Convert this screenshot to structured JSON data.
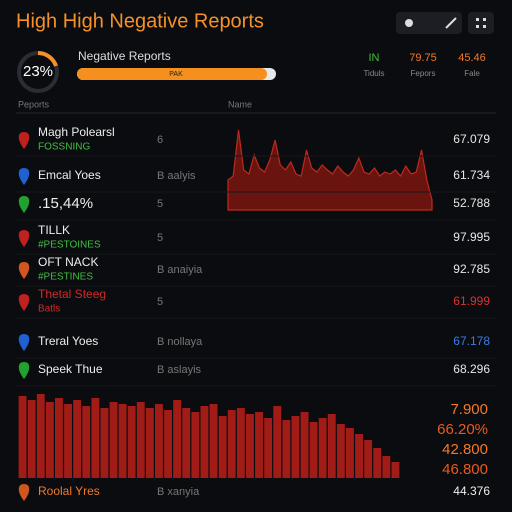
{
  "header": {
    "title": "High High Negative Reports"
  },
  "gauge": {
    "value_label": "23%",
    "caption": "Negative Reports",
    "bar_label": "PAK"
  },
  "stats": [
    {
      "value": "IN",
      "label": "Tiduls",
      "color": "#3fbf3f"
    },
    {
      "value": "79.75",
      "label": "Fepors",
      "color": "#f07a2a"
    },
    {
      "value": "45.46",
      "label": "Fale",
      "color": "#f07a2a"
    }
  ],
  "columns": [
    "Peports",
    "Name"
  ],
  "rows": [
    {
      "name": "Magh Polearsl",
      "sub": "FOSSNING",
      "sub_color": "#3fbf3f",
      "count": "6",
      "value": "67.079",
      "icon": "#c0201e",
      "color": "#e8e8e8"
    },
    {
      "name": "Emcal Yoes",
      "count": "B aalyis",
      "value": "61.734",
      "icon": "#2060d0",
      "color": "#e8e8e8"
    },
    {
      "name": ".15,44%",
      "count": "5",
      "value": "52.788",
      "icon": "#22a030",
      "color": "#e8e8e8"
    },
    {
      "name": "TILLK",
      "sub": "#PESTOINES",
      "sub_color": "#3fbf3f",
      "count": "5",
      "value": "97.995",
      "icon": "#c0201e",
      "color": "#e8e8e8"
    },
    {
      "name": "OFT NACK",
      "sub": "#PESTINES",
      "sub_color": "#3fbf3f",
      "count": "B anaiyia",
      "value": "92.785",
      "icon": "#d0561e",
      "color": "#e8e8e8"
    },
    {
      "name": "Thetal Steeg",
      "name_color": "#d02a2a",
      "sub": "Batls",
      "sub_color": "#d02a2a",
      "count": "5",
      "value": "61.999",
      "icon": "#c0201e",
      "color": "#e03030"
    },
    {
      "name": "Treral Yoes",
      "count": "B nollaya",
      "value": "67.178",
      "icon": "#2060d0",
      "color": "#3a7ce8"
    },
    {
      "name": "Speek Thue",
      "count": "B aslayis",
      "value": "68.296",
      "icon": "#22a030",
      "color": "#e8e8e8"
    }
  ],
  "trend": [
    30,
    34,
    80,
    40,
    36,
    55,
    42,
    38,
    50,
    70,
    45,
    40,
    48,
    36,
    34,
    60,
    42,
    38,
    45,
    40,
    36,
    44,
    38,
    34,
    40,
    52,
    38,
    36,
    42,
    34,
    38,
    36,
    40,
    34,
    44,
    36,
    38,
    60,
    30,
    10
  ],
  "bars": [
    82,
    78,
    84,
    76,
    80,
    74,
    78,
    72,
    80,
    70,
    76,
    74,
    72,
    76,
    70,
    74,
    68,
    78,
    70,
    66,
    72,
    74,
    62,
    68,
    70,
    64,
    66,
    60,
    72,
    58,
    62,
    66,
    56,
    60,
    64,
    54,
    50,
    44,
    38,
    30,
    22,
    16
  ],
  "bar_labels": [
    {
      "text": "7.900",
      "color": "#f07a2a"
    },
    {
      "text": "66.20%",
      "color": "#e85a20"
    },
    {
      "text": "42.800",
      "color": "#f07a2a"
    },
    {
      "text": "46.800",
      "color": "#e85a20"
    }
  ],
  "footer_row": {
    "name": "Roolal Yres",
    "count": "B xanyia",
    "value": "44.376",
    "icon": "#d0561e"
  }
}
